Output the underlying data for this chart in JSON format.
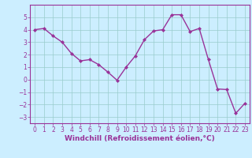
{
  "x": [
    0,
    1,
    2,
    3,
    4,
    5,
    6,
    7,
    8,
    9,
    10,
    11,
    12,
    13,
    14,
    15,
    16,
    17,
    18,
    19,
    20,
    21,
    22,
    23
  ],
  "y": [
    4.0,
    4.1,
    3.5,
    3.0,
    2.1,
    1.5,
    1.6,
    1.2,
    0.6,
    -0.05,
    1.0,
    1.9,
    3.2,
    3.9,
    4.0,
    5.2,
    5.2,
    3.85,
    4.1,
    1.6,
    -0.75,
    -0.8,
    -2.7,
    -1.9
  ],
  "line_color": "#993399",
  "marker": "D",
  "marker_size": 2.0,
  "bg_color": "#cceeff",
  "grid_color": "#99cccc",
  "xlabel": "Windchill (Refroidissement éolien,°C)",
  "xlabel_fontsize": 6.5,
  "ylim": [
    -3.5,
    6.0
  ],
  "xlim": [
    -0.5,
    23.5
  ],
  "yticks": [
    -3,
    -2,
    -1,
    0,
    1,
    2,
    3,
    4,
    5
  ],
  "xticks": [
    0,
    1,
    2,
    3,
    4,
    5,
    6,
    7,
    8,
    9,
    10,
    11,
    12,
    13,
    14,
    15,
    16,
    17,
    18,
    19,
    20,
    21,
    22,
    23
  ],
  "tick_fontsize": 5.5,
  "tick_color": "#993399",
  "spine_color": "#993399",
  "linewidth": 1.0
}
